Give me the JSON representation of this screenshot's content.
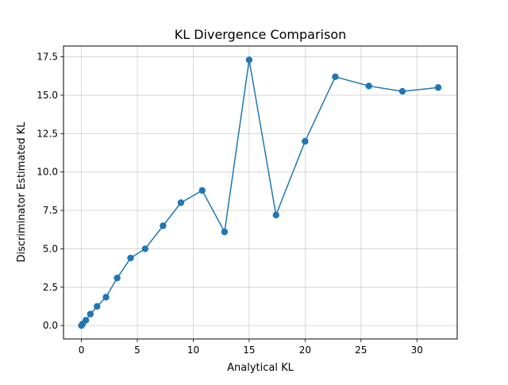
{
  "chart_data": {
    "type": "line",
    "title": "KL Divergence Comparison",
    "xlabel": "Analytical KL",
    "ylabel": "Discriminator Estimated KL",
    "xlim": [
      -1.6,
      33.6
    ],
    "ylim": [
      -0.87,
      18.2
    ],
    "xticks": [
      0,
      5,
      10,
      15,
      20,
      25,
      30
    ],
    "xtick_labels": [
      "0",
      "5",
      "10",
      "15",
      "20",
      "25",
      "30"
    ],
    "yticks": [
      0.0,
      2.5,
      5.0,
      7.5,
      10.0,
      12.5,
      15.0,
      17.5
    ],
    "ytick_labels": [
      "0.0",
      "2.5",
      "5.0",
      "7.5",
      "10.0",
      "12.5",
      "15.0",
      "17.5"
    ],
    "grid": true,
    "series": [
      {
        "color": "#1f77b4",
        "marker": "circle",
        "x": [
          0.0,
          0.1,
          0.4,
          0.8,
          1.4,
          2.2,
          3.2,
          4.4,
          5.7,
          7.3,
          8.9,
          10.8,
          12.8,
          15.0,
          17.4,
          20.0,
          22.7,
          25.7,
          28.7,
          31.9
        ],
        "y": [
          0.0,
          0.1,
          0.35,
          0.75,
          1.25,
          1.85,
          3.1,
          4.4,
          5.0,
          6.5,
          8.0,
          8.8,
          6.1,
          17.3,
          7.2,
          12.0,
          16.2,
          15.6,
          15.25,
          15.5
        ]
      }
    ]
  }
}
